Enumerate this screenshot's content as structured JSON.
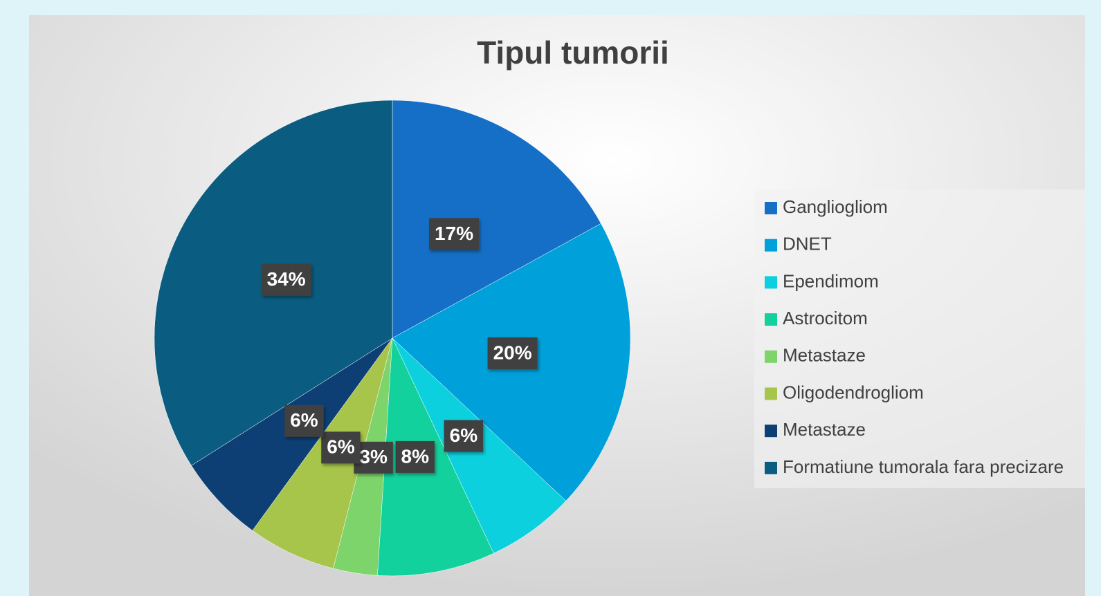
{
  "chart_data": {
    "type": "pie",
    "title": "Tipul tumorii",
    "categories": [
      "Gangliogliom",
      "DNET",
      "Ependimom",
      "Astrocitom",
      "Metastaze",
      "Oligodendrogliom",
      "Metastaze",
      "Formatiune tumorala fara precizare"
    ],
    "values": [
      17,
      20,
      6,
      8,
      3,
      6,
      6,
      34
    ],
    "value_labels": [
      "17%",
      "20%",
      "6%",
      "8%",
      "3%",
      "6%",
      "6%",
      "34%"
    ],
    "colors": [
      "#156fc6",
      "#00a0da",
      "#0cd0dd",
      "#13d19c",
      "#7cd46a",
      "#a7c54a",
      "#0d3f75",
      "#0a5c80"
    ],
    "legend": "right"
  }
}
